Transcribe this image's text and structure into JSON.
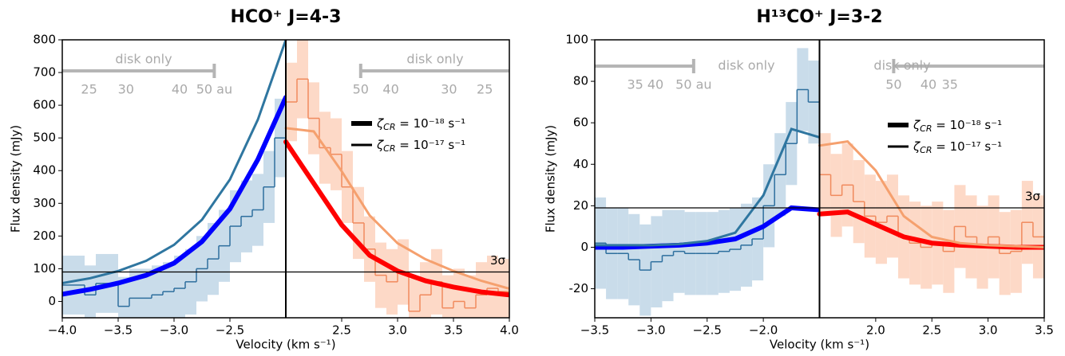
{
  "chart_data": [
    {
      "type": "line",
      "title": "HCO⁺  J=4-3",
      "xlabel": "Velocity (km s⁻¹)",
      "ylabel": "Flux density (mJy)",
      "ylim": [
        -50,
        800
      ],
      "yticks": [
        0,
        100,
        200,
        300,
        400,
        500,
        600,
        700,
        800
      ],
      "threshold": {
        "value": 90,
        "label": "3σ"
      },
      "legend": [
        {
          "symbol": "ζ",
          "sub": "CR",
          "text": " = 10⁻¹⁸ s⁻¹",
          "style": "thick"
        },
        {
          "symbol": "ζ",
          "sub": "CR",
          "text": " = 10⁻¹⁷ s⁻¹",
          "style": "thin"
        }
      ],
      "halves": [
        {
          "xlim": [
            -4,
            -2
          ],
          "xticks": [
            {
              "value": -4,
              "label": "−4.0"
            },
            {
              "value": -3.5,
              "label": "−3.5"
            },
            {
              "value": -3,
              "label": "−3.0"
            },
            {
              "value": -2.5,
              "label": "−2.5"
            }
          ],
          "disk_label": "disk only",
          "au_ticks": [
            {
              "value": -3.76,
              "label": "25"
            },
            {
              "value": -3.43,
              "label": "30"
            },
            {
              "value": -2.95,
              "label": "40"
            },
            {
              "value": -2.64,
              "label": "50 au"
            }
          ],
          "observed": {
            "color": "#2e6f9e",
            "band_color": "#c9dcea",
            "bins": [
              -4,
              -3.9,
              -3.8,
              -3.7,
              -3.6,
              -3.5,
              -3.4,
              -3.3,
              -3.2,
              -3.1,
              -3,
              -2.9,
              -2.8,
              -2.7,
              -2.6,
              -2.5,
              -2.4,
              -2.3,
              -2.2,
              -2.1,
              -2
            ],
            "values": [
              50,
              50,
              20,
              55,
              55,
              -15,
              10,
              10,
              20,
              30,
              40,
              60,
              100,
              130,
              170,
              230,
              260,
              280,
              350,
              500
            ],
            "errors": [
              90,
              90,
              90,
              90,
              90,
              90,
              90,
              90,
              90,
              90,
              100,
              100,
              100,
              110,
              110,
              110,
              110,
              110,
              110,
              120
            ]
          },
          "models": [
            {
              "style": "thick",
              "color": "#0000ff",
              "x": [
                -4,
                -3.75,
                -3.5,
                -3.25,
                -3,
                -2.75,
                -2.5,
                -2.25,
                -2
              ],
              "values": [
                22,
                37,
                56,
                80,
                117,
                183,
                283,
                434,
                624
              ]
            },
            {
              "style": "thin",
              "color": "#2f76a0",
              "x": [
                -4,
                -3.75,
                -3.5,
                -3.25,
                -3,
                -2.75,
                -2.5,
                -2.25,
                -2
              ],
              "values": [
                56,
                71,
                93,
                124,
                173,
                250,
                373,
                556,
                800
              ]
            }
          ]
        },
        {
          "xlim": [
            2,
            4
          ],
          "xticks": [
            {
              "value": 2.5,
              "label": "2.5"
            },
            {
              "value": 3,
              "label": "3.0"
            },
            {
              "value": 3.5,
              "label": "3.5"
            },
            {
              "value": 4,
              "label": "4.0"
            }
          ],
          "disk_label": "disk only",
          "au_ticks": [
            {
              "value": 2.67,
              "label": "50"
            },
            {
              "value": 2.94,
              "label": "40"
            },
            {
              "value": 3.46,
              "label": "30"
            },
            {
              "value": 3.78,
              "label": "25"
            }
          ],
          "observed": {
            "color": "#f08a5d",
            "band_color": "#fdd9c7",
            "bins": [
              2,
              2.1,
              2.2,
              2.3,
              2.4,
              2.5,
              2.6,
              2.7,
              2.8,
              2.9,
              3,
              3.1,
              3.2,
              3.3,
              3.4,
              3.5,
              3.6,
              3.7,
              3.8,
              3.9,
              4
            ],
            "values": [
              610,
              680,
              560,
              470,
              450,
              350,
              240,
              160,
              80,
              60,
              90,
              -30,
              20,
              60,
              -20,
              0,
              -20,
              20,
              40,
              30
            ],
            "errors": [
              120,
              120,
              110,
              110,
              110,
              110,
              110,
              100,
              100,
              100,
              100,
              100,
              100,
              100,
              100,
              100,
              100,
              100,
              100,
              100
            ]
          },
          "models": [
            {
              "style": "thick",
              "color": "#ff0000",
              "x": [
                2,
                2.25,
                2.5,
                2.75,
                3,
                3.25,
                3.5,
                3.75,
                4
              ],
              "values": [
                488,
                361,
                234,
                141,
                93,
                63,
                44,
                29,
                20
              ]
            },
            {
              "style": "thin",
              "color": "#f5a06e",
              "x": [
                2,
                2.25,
                2.5,
                2.75,
                3,
                3.25,
                3.5,
                3.75,
                4
              ],
              "values": [
                530,
                520,
                398,
                263,
                178,
                129,
                93,
                63,
                39
              ]
            }
          ]
        }
      ]
    },
    {
      "type": "line",
      "title": "H¹³CO⁺  J=3-2",
      "xlabel": "Velocity (km s⁻¹)",
      "ylabel": "Flux density (mJy)",
      "ylim": [
        -34,
        100
      ],
      "yticks": [
        -20,
        0,
        20,
        40,
        60,
        80,
        100
      ],
      "threshold": {
        "value": 19,
        "label": "3σ"
      },
      "legend": [
        {
          "symbol": "ζ",
          "sub": "CR",
          "text": " = 10⁻¹⁸ s⁻¹",
          "style": "thick"
        },
        {
          "symbol": "ζ",
          "sub": "CR",
          "text": " = 10⁻¹⁷ s⁻¹",
          "style": "thin"
        }
      ],
      "halves": [
        {
          "xlim": [
            -3.5,
            -1.5
          ],
          "xticks": [
            {
              "value": -3.5,
              "label": "−3.5"
            },
            {
              "value": -3,
              "label": "−3.0"
            },
            {
              "value": -2.5,
              "label": "−2.5"
            },
            {
              "value": -2,
              "label": "−2.0"
            }
          ],
          "disk_label": "disk only",
          "au_ticks": [
            {
              "value": -3.14,
              "label": "35"
            },
            {
              "value": -2.96,
              "label": "40"
            },
            {
              "value": -2.62,
              "label": "50 au"
            }
          ],
          "observed": {
            "color": "#2e6f9e",
            "band_color": "#c9dcea",
            "bins": [
              -3.5,
              -3.4,
              -3.3,
              -3.2,
              -3.1,
              -3,
              -2.9,
              -2.8,
              -2.7,
              -2.6,
              -2.5,
              -2.4,
              -2.3,
              -2.2,
              -2.1,
              -2,
              -1.9,
              -1.8,
              -1.7,
              -1.6,
              -1.5
            ],
            "values": [
              2,
              -3,
              -3,
              -6,
              -11,
              -7,
              -4,
              -2,
              -3,
              -3,
              -3,
              -2,
              -1,
              1,
              4,
              20,
              35,
              50,
              76,
              70
            ],
            "errors": [
              22,
              22,
              22,
              22,
              22,
              22,
              22,
              20,
              20,
              20,
              20,
              20,
              20,
              20,
              20,
              20,
              20,
              20,
              20,
              20
            ]
          },
          "models": [
            {
              "style": "thick",
              "color": "#0000ff",
              "x": [
                -3.5,
                -3.25,
                -3,
                -2.75,
                -2.5,
                -2.25,
                -2,
                -1.75,
                -1.5
              ],
              "values": [
                0,
                0,
                0.5,
                1,
                2,
                4,
                10,
                19,
                18
              ]
            },
            {
              "style": "thin",
              "color": "#2f76a0",
              "x": [
                -3.5,
                -3.25,
                -3,
                -2.75,
                -2.5,
                -2.25,
                -2,
                -1.75,
                -1.5
              ],
              "values": [
                1,
                1,
                1,
                1.5,
                3,
                7,
                25,
                57,
                53
              ]
            }
          ]
        },
        {
          "xlim": [
            1.5,
            3.5
          ],
          "xticks": [
            {
              "value": 2,
              "label": "2.0"
            },
            {
              "value": 2.5,
              "label": "2.5"
            },
            {
              "value": 3,
              "label": "3.0"
            },
            {
              "value": 3.5,
              "label": "3.5"
            }
          ],
          "disk_label": "disk only",
          "au_ticks": [
            {
              "value": 2.16,
              "label": "50"
            },
            {
              "value": 2.47,
              "label": "40"
            },
            {
              "value": 2.66,
              "label": "35"
            }
          ],
          "observed": {
            "color": "#f08a5d",
            "band_color": "#fdd9c7",
            "bins": [
              1.5,
              1.6,
              1.7,
              1.8,
              1.9,
              2,
              2.1,
              2.2,
              2.3,
              2.4,
              2.5,
              2.6,
              2.7,
              2.8,
              2.9,
              3,
              3.1,
              3.2,
              3.3,
              3.4,
              3.5
            ],
            "values": [
              35,
              25,
              30,
              22,
              15,
              12,
              15,
              5,
              2,
              0,
              2,
              -2,
              10,
              5,
              0,
              5,
              -3,
              -2,
              12,
              5
            ],
            "errors": [
              20,
              20,
              20,
              20,
              20,
              20,
              20,
              20,
              20,
              20,
              20,
              20,
              20,
              20,
              20,
              20,
              20,
              20,
              20,
              20
            ]
          },
          "models": [
            {
              "style": "thick",
              "color": "#ff0000",
              "x": [
                1.5,
                1.75,
                2,
                2.25,
                2.5,
                2.75,
                3,
                3.25,
                3.5
              ],
              "values": [
                16,
                17,
                11,
                5,
                2,
                1,
                0.5,
                0,
                0
              ]
            },
            {
              "style": "thin",
              "color": "#f5a06e",
              "x": [
                1.5,
                1.75,
                2,
                2.25,
                2.5,
                2.75,
                3,
                3.25,
                3.5
              ],
              "values": [
                49,
                51,
                37,
                15,
                5,
                2,
                1,
                0.5,
                0
              ]
            }
          ]
        }
      ]
    }
  ]
}
